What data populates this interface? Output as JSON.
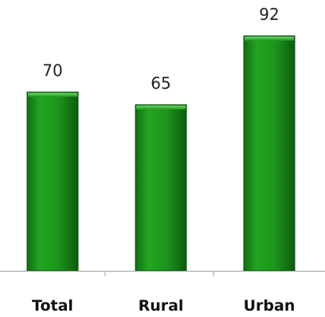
{
  "chart_data": {
    "type": "bar",
    "categories": [
      "Total",
      "Rural",
      "Urban"
    ],
    "values": [
      70,
      65,
      92
    ],
    "title": "",
    "xlabel": "",
    "ylabel": "",
    "ylim": [
      0,
      100
    ],
    "grid": false,
    "legend": "none",
    "bar_color": "#1f9a1f"
  }
}
